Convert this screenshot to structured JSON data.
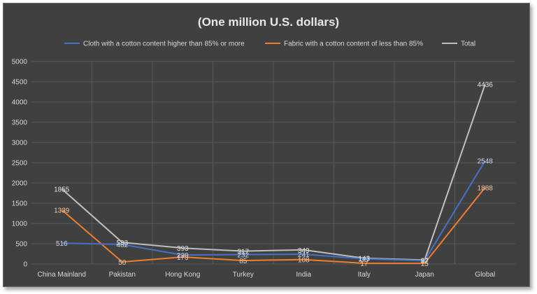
{
  "chart_data": {
    "type": "line",
    "title": "(One million U.S. dollars)",
    "xlabel": "",
    "ylabel": "",
    "ylim": [
      0,
      5000
    ],
    "yticks": [
      0,
      500,
      1000,
      1500,
      2000,
      2500,
      3000,
      3500,
      4000,
      4500,
      5000
    ],
    "grid": true,
    "legend_position": "top",
    "categories": [
      "China Mainland",
      "Pakistan",
      "Hong Kong",
      "Turkey",
      "India",
      "Italy",
      "Japan",
      "Global"
    ],
    "series": [
      {
        "name": "Cloth with a cotton content higher than 85% or more",
        "color": "#4472c4",
        "values": [
          516,
          482,
          220,
          232,
          241,
          127,
          82,
          2548
        ],
        "labels": [
          "516",
          "482",
          "220",
          "232",
          "241",
          "127",
          "82",
          "2548"
        ]
      },
      {
        "name": "Fabric with a cotton content of less than 85%",
        "color": "#ed7d31",
        "values": [
          1339,
          50,
          173,
          85,
          108,
          17,
          15,
          1888
        ],
        "labels": [
          "1339",
          "50",
          "173",
          "85",
          "108",
          "17",
          "15",
          "1888"
        ]
      },
      {
        "name": "Total",
        "color": "#bfbfbf",
        "values": [
          1855,
          533,
          393,
          317,
          349,
          143,
          97,
          4436
        ],
        "labels": [
          "1855",
          "533",
          "393",
          "317",
          "349",
          "143",
          "97",
          "4436"
        ]
      }
    ]
  }
}
